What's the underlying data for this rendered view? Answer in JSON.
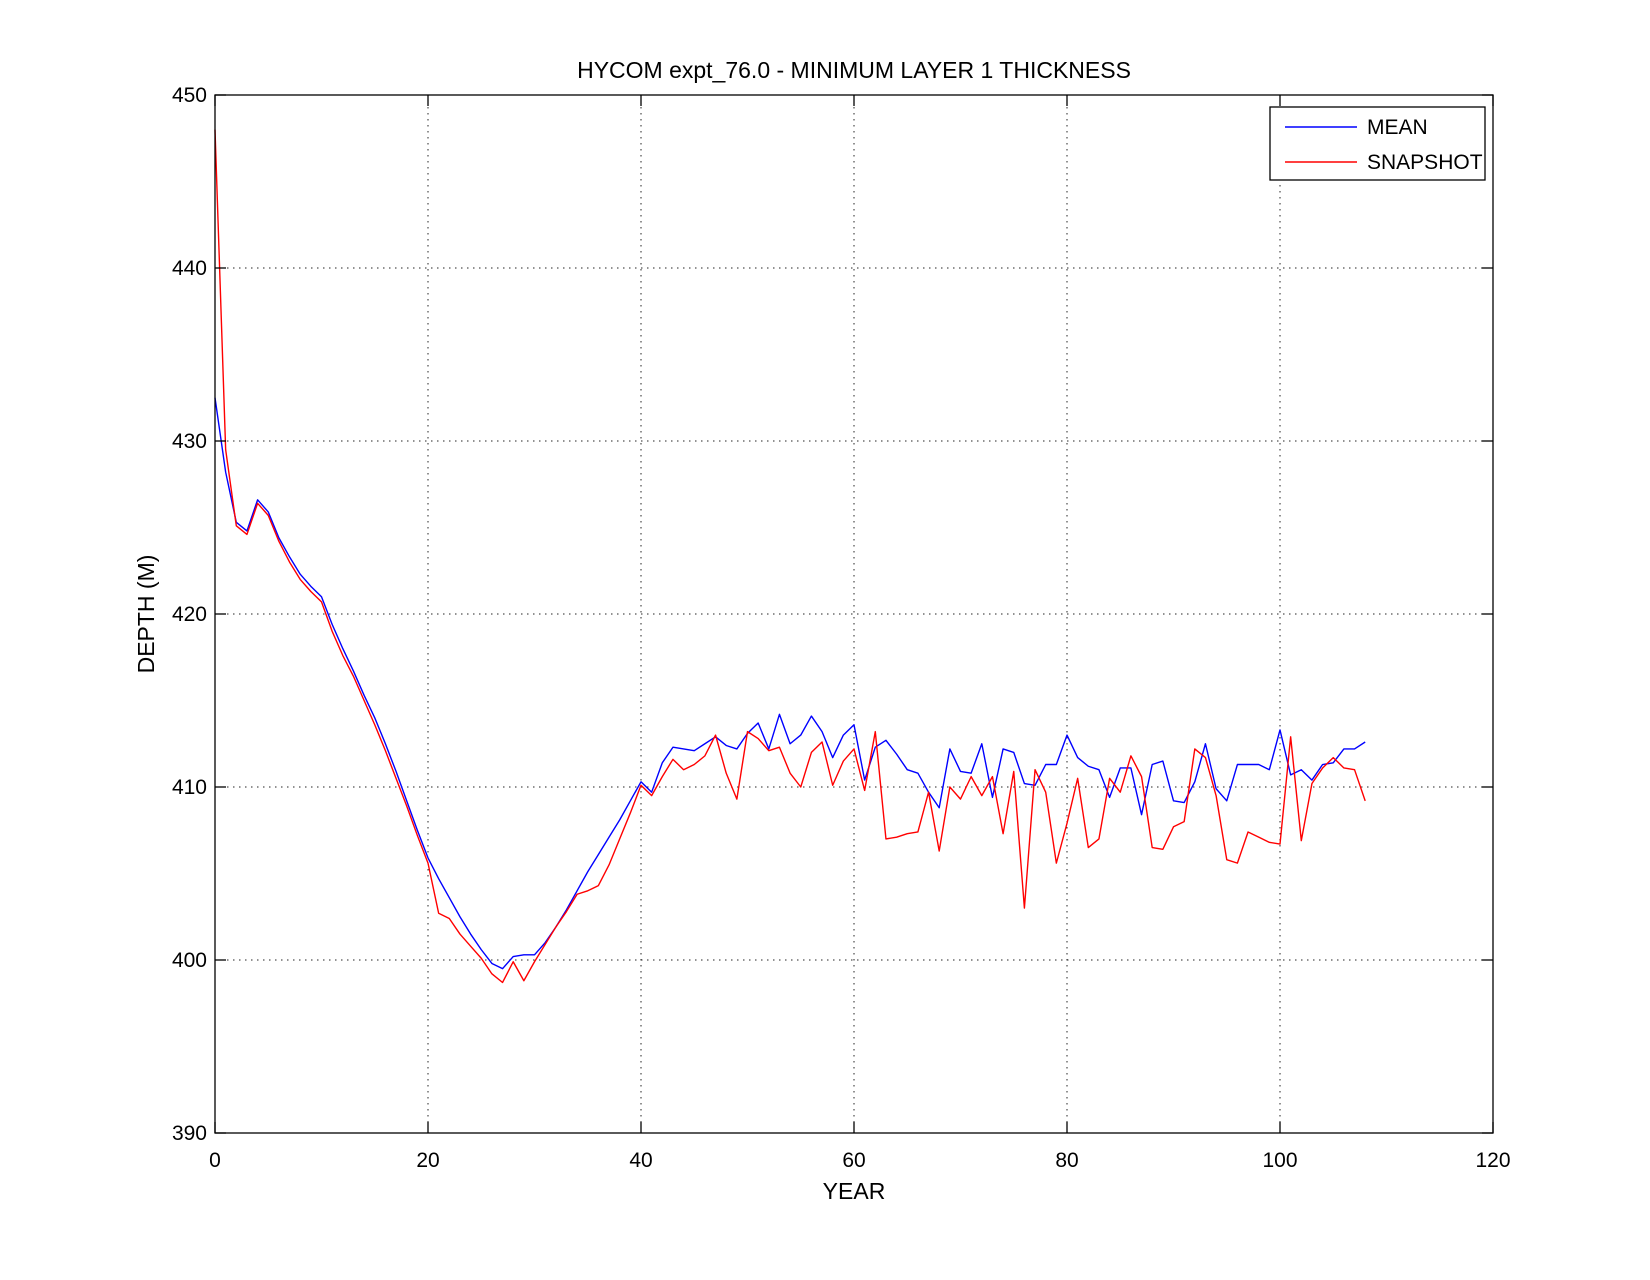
{
  "figure": {
    "title": "HYCOM expt_76.0 - MINIMUM LAYER 1 THICKNESS",
    "xlabel": "YEAR",
    "ylabel": "DEPTH (M)",
    "background_color": "#ffffff",
    "axis_color": "#000000",
    "legend": {
      "position": "top-right",
      "entries": [
        {
          "label": "MEAN",
          "color": "#0000ff"
        },
        {
          "label": "SNAPSHOT",
          "color": "#ff0000"
        }
      ]
    }
  },
  "chart_data": {
    "type": "line",
    "title": "HYCOM expt_76.0 - MINIMUM LAYER 1 THICKNESS",
    "xlabel": "YEAR",
    "ylabel": "DEPTH (M)",
    "xlim": [
      0,
      120
    ],
    "ylim": [
      390,
      450
    ],
    "xticks": [
      0,
      20,
      40,
      60,
      80,
      100,
      120
    ],
    "yticks": [
      390,
      400,
      410,
      420,
      430,
      440,
      450
    ],
    "grid": "dotted",
    "legend_position": "top-right",
    "x_start": 0,
    "x_step": 1,
    "series": [
      {
        "name": "MEAN",
        "color": "#0000ff",
        "values": [
          432.5,
          428.2,
          425.3,
          424.8,
          426.6,
          425.9,
          424.4,
          423.3,
          422.3,
          421.6,
          421.0,
          419.4,
          418.0,
          416.7,
          415.3,
          414.0,
          412.5,
          410.9,
          409.2,
          407.5,
          405.9,
          404.7,
          403.6,
          402.5,
          401.5,
          400.6,
          399.8,
          399.5,
          400.2,
          400.3,
          400.3,
          401.0,
          401.9,
          402.9,
          404.0,
          405.1,
          406.1,
          407.1,
          408.1,
          409.2,
          410.3,
          409.7,
          411.4,
          412.3,
          412.2,
          412.1,
          412.5,
          412.9,
          412.4,
          412.2,
          413.1,
          413.7,
          412.2,
          414.2,
          412.5,
          413.0,
          414.1,
          413.2,
          411.7,
          413.0,
          413.6,
          410.4,
          412.3,
          412.7,
          411.9,
          411.0,
          410.8,
          409.7,
          408.8,
          412.2,
          410.9,
          410.8,
          412.5,
          409.4,
          412.2,
          412.0,
          410.2,
          410.1,
          411.3,
          411.3,
          413.0,
          411.7,
          411.2,
          411.0,
          409.4,
          411.1,
          411.1,
          408.4,
          411.3,
          411.5,
          409.2,
          409.1,
          410.3,
          412.5,
          409.9,
          409.2,
          411.3,
          411.3,
          411.3,
          411.0,
          413.3,
          410.7,
          411.0,
          410.4,
          411.3,
          411.4,
          412.2,
          412.2,
          412.6
        ]
      },
      {
        "name": "SNAPSHOT",
        "color": "#ff0000",
        "values": [
          448.0,
          429.5,
          425.1,
          424.6,
          426.4,
          425.7,
          424.2,
          423.0,
          422.0,
          421.3,
          420.7,
          419.0,
          417.6,
          416.4,
          415.0,
          413.6,
          412.1,
          410.5,
          408.9,
          407.2,
          405.6,
          402.7,
          402.4,
          401.5,
          400.8,
          400.1,
          399.2,
          398.7,
          399.9,
          398.8,
          399.9,
          400.9,
          401.9,
          402.8,
          403.8,
          404.0,
          404.3,
          405.5,
          407.0,
          408.5,
          410.1,
          409.5,
          410.6,
          411.6,
          411.0,
          411.3,
          411.8,
          413.0,
          410.8,
          409.3,
          413.2,
          412.8,
          412.1,
          412.3,
          410.8,
          410.0,
          412.0,
          412.6,
          410.1,
          411.5,
          412.2,
          409.8,
          413.2,
          407.0,
          407.1,
          407.3,
          407.4,
          409.7,
          406.3,
          410.0,
          409.3,
          410.6,
          409.5,
          410.6,
          407.3,
          410.9,
          403.0,
          411.0,
          409.7,
          405.6,
          407.9,
          410.5,
          406.5,
          407.0,
          410.5,
          409.7,
          411.8,
          410.6,
          406.5,
          406.4,
          407.7,
          408.0,
          412.2,
          411.7,
          409.5,
          405.8,
          405.6,
          407.4,
          407.1,
          406.8,
          406.7,
          412.9,
          406.9,
          410.2,
          411.1,
          411.7,
          411.1,
          411.0,
          409.2
        ]
      }
    ]
  }
}
